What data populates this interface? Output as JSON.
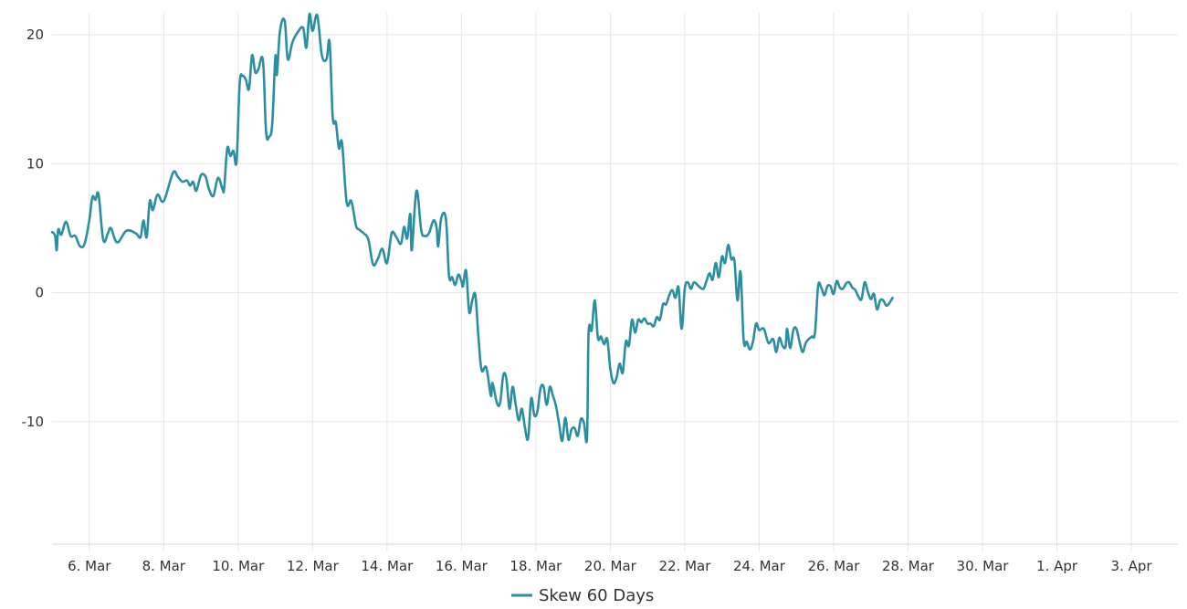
{
  "chart_data": {
    "type": "line",
    "title": "",
    "xlabel": "",
    "ylabel": "",
    "ylim": [
      -19.5,
      21.7
    ],
    "xlim": [
      "2020-03-05T00:00",
      "2020-04-04T06:00"
    ],
    "grid": true,
    "legend_position": "bottom-center",
    "yticks": [
      -10,
      0,
      10,
      20
    ],
    "xticks": [
      {
        "date": "2020-03-06",
        "label": "6. Mar"
      },
      {
        "date": "2020-03-08",
        "label": "8. Mar"
      },
      {
        "date": "2020-03-10",
        "label": "10. Mar"
      },
      {
        "date": "2020-03-12",
        "label": "12. Mar"
      },
      {
        "date": "2020-03-14",
        "label": "14. Mar"
      },
      {
        "date": "2020-03-16",
        "label": "16. Mar"
      },
      {
        "date": "2020-03-18",
        "label": "18. Mar"
      },
      {
        "date": "2020-03-20",
        "label": "20. Mar"
      },
      {
        "date": "2020-03-22",
        "label": "22. Mar"
      },
      {
        "date": "2020-03-24",
        "label": "24. Mar"
      },
      {
        "date": "2020-03-26",
        "label": "26. Mar"
      },
      {
        "date": "2020-03-28",
        "label": "28. Mar"
      },
      {
        "date": "2020-03-30",
        "label": "30. Mar"
      },
      {
        "date": "2020-04-01",
        "label": "1. Apr"
      },
      {
        "date": "2020-04-03",
        "label": "3. Apr"
      }
    ],
    "series": [
      {
        "name": "Skew 60 Days",
        "color": "#2b8fa1",
        "points": [
          [
            "2020-03-05T00:00",
            4.7
          ],
          [
            "2020-03-05T02:00",
            4.4
          ],
          [
            "2020-03-05T03:00",
            3.3
          ],
          [
            "2020-03-05T04:00",
            4.9
          ],
          [
            "2020-03-05T06:00",
            4.5
          ],
          [
            "2020-03-05T09:00",
            5.5
          ],
          [
            "2020-03-05T12:00",
            4.4
          ],
          [
            "2020-03-05T15:00",
            4.4
          ],
          [
            "2020-03-05T18:00",
            3.6
          ],
          [
            "2020-03-05T21:00",
            3.8
          ],
          [
            "2020-03-06T00:00",
            5.6
          ],
          [
            "2020-03-06T02:00",
            7.4
          ],
          [
            "2020-03-06T04:00",
            7.2
          ],
          [
            "2020-03-06T06:00",
            7.6
          ],
          [
            "2020-03-06T09:00",
            4.1
          ],
          [
            "2020-03-06T12:00",
            4.6
          ],
          [
            "2020-03-06T14:00",
            5.0
          ],
          [
            "2020-03-06T18:00",
            3.9
          ],
          [
            "2020-03-07T00:00",
            4.8
          ],
          [
            "2020-03-07T06:00",
            4.6
          ],
          [
            "2020-03-07T09:00",
            4.3
          ],
          [
            "2020-03-07T11:00",
            5.6
          ],
          [
            "2020-03-07T13:00",
            4.3
          ],
          [
            "2020-03-07T15:00",
            7.1
          ],
          [
            "2020-03-07T17:00",
            6.4
          ],
          [
            "2020-03-07T20:00",
            7.6
          ],
          [
            "2020-03-08T00:00",
            7.1
          ],
          [
            "2020-03-08T06:00",
            9.3
          ],
          [
            "2020-03-08T09:00",
            9.0
          ],
          [
            "2020-03-08T12:00",
            8.6
          ],
          [
            "2020-03-08T15:00",
            8.7
          ],
          [
            "2020-03-08T17:00",
            8.3
          ],
          [
            "2020-03-08T19:00",
            8.6
          ],
          [
            "2020-03-08T21:00",
            7.9
          ],
          [
            "2020-03-09T00:00",
            9.1
          ],
          [
            "2020-03-09T03:00",
            9.0
          ],
          [
            "2020-03-09T05:00",
            8.1
          ],
          [
            "2020-03-09T08:00",
            7.5
          ],
          [
            "2020-03-09T11:00",
            8.9
          ],
          [
            "2020-03-09T14:00",
            8.0
          ],
          [
            "2020-03-09T15:00",
            8.1
          ],
          [
            "2020-03-09T17:00",
            11.2
          ],
          [
            "2020-03-09T19:00",
            10.6
          ],
          [
            "2020-03-09T21:00",
            11.0
          ],
          [
            "2020-03-09T23:00",
            10.2
          ],
          [
            "2020-03-10T01:00",
            16.2
          ],
          [
            "2020-03-10T03:00",
            16.8
          ],
          [
            "2020-03-10T05:00",
            16.5
          ],
          [
            "2020-03-10T07:00",
            15.8
          ],
          [
            "2020-03-10T09:00",
            18.4
          ],
          [
            "2020-03-10T11:00",
            17.1
          ],
          [
            "2020-03-10T13:00",
            17.3
          ],
          [
            "2020-03-10T16:00",
            18.0
          ],
          [
            "2020-03-10T18:00",
            12.5
          ],
          [
            "2020-03-10T20:00",
            12.1
          ],
          [
            "2020-03-10T22:00",
            13.1
          ],
          [
            "2020-03-11T00:00",
            18.3
          ],
          [
            "2020-03-11T01:00",
            16.9
          ],
          [
            "2020-03-11T03:00",
            20.3
          ],
          [
            "2020-03-11T06:00",
            21.1
          ],
          [
            "2020-03-11T08:00",
            18.1
          ],
          [
            "2020-03-11T11:00",
            19.4
          ],
          [
            "2020-03-11T15:00",
            20.3
          ],
          [
            "2020-03-11T18:00",
            20.5
          ],
          [
            "2020-03-11T20:00",
            19.0
          ],
          [
            "2020-03-11T22:00",
            21.6
          ],
          [
            "2020-03-12T00:00",
            20.3
          ],
          [
            "2020-03-12T03:00",
            21.5
          ],
          [
            "2020-03-12T06:00",
            18.4
          ],
          [
            "2020-03-12T09:00",
            18.1
          ],
          [
            "2020-03-12T11:00",
            19.4
          ],
          [
            "2020-03-12T13:00",
            13.6
          ],
          [
            "2020-03-12T15:00",
            13.2
          ],
          [
            "2020-03-12T17:00",
            11.2
          ],
          [
            "2020-03-12T19:00",
            11.6
          ],
          [
            "2020-03-12T22:00",
            7.0
          ],
          [
            "2020-03-13T01:00",
            7.1
          ],
          [
            "2020-03-13T04:00",
            5.2
          ],
          [
            "2020-03-13T06:00",
            4.9
          ],
          [
            "2020-03-13T09:00",
            4.6
          ],
          [
            "2020-03-13T12:00",
            4.1
          ],
          [
            "2020-03-13T15:00",
            2.2
          ],
          [
            "2020-03-13T18:00",
            2.6
          ],
          [
            "2020-03-13T21:00",
            3.4
          ],
          [
            "2020-03-14T00:00",
            2.3
          ],
          [
            "2020-03-14T03:00",
            4.6
          ],
          [
            "2020-03-14T06:00",
            4.3
          ],
          [
            "2020-03-14T09:00",
            3.8
          ],
          [
            "2020-03-14T11:00",
            5.1
          ],
          [
            "2020-03-14T13:00",
            4.2
          ],
          [
            "2020-03-14T15:00",
            6.1
          ],
          [
            "2020-03-14T16:00",
            3.3
          ],
          [
            "2020-03-14T19:00",
            7.9
          ],
          [
            "2020-03-14T22:00",
            4.9
          ],
          [
            "2020-03-15T00:00",
            4.4
          ],
          [
            "2020-03-15T03:00",
            4.6
          ],
          [
            "2020-03-15T06:00",
            5.6
          ],
          [
            "2020-03-15T08:00",
            5.0
          ],
          [
            "2020-03-15T09:00",
            3.6
          ],
          [
            "2020-03-15T11:00",
            5.8
          ],
          [
            "2020-03-15T14:00",
            5.7
          ],
          [
            "2020-03-15T16:00",
            1.3
          ],
          [
            "2020-03-15T18:00",
            1.2
          ],
          [
            "2020-03-15T20:00",
            0.6
          ],
          [
            "2020-03-15T22:00",
            1.4
          ],
          [
            "2020-03-16T00:00",
            0.9
          ],
          [
            "2020-03-16T01:00",
            0.5
          ],
          [
            "2020-03-16T03:00",
            1.7
          ],
          [
            "2020-03-16T05:00",
            -1.5
          ],
          [
            "2020-03-16T07:00",
            -0.6
          ],
          [
            "2020-03-16T09:00",
            -0.2
          ],
          [
            "2020-03-16T11:00",
            -3.5
          ],
          [
            "2020-03-16T13:00",
            -6.0
          ],
          [
            "2020-03-16T16:00",
            -5.8
          ],
          [
            "2020-03-16T19:00",
            -8.0
          ],
          [
            "2020-03-16T20:00",
            -7.0
          ],
          [
            "2020-03-16T23:00",
            -8.6
          ],
          [
            "2020-03-17T01:00",
            -8.5
          ],
          [
            "2020-03-17T03:00",
            -6.4
          ],
          [
            "2020-03-17T05:00",
            -6.7
          ],
          [
            "2020-03-17T07:00",
            -9.0
          ],
          [
            "2020-03-17T09:00",
            -7.3
          ],
          [
            "2020-03-17T11:00",
            -8.7
          ],
          [
            "2020-03-17T13:00",
            -9.9
          ],
          [
            "2020-03-17T15:00",
            -9.0
          ],
          [
            "2020-03-17T17:00",
            -10.5
          ],
          [
            "2020-03-17T19:00",
            -11.3
          ],
          [
            "2020-03-17T21:00",
            -8.2
          ],
          [
            "2020-03-17T23:00",
            -9.5
          ],
          [
            "2020-03-18T01:00",
            -9.2
          ],
          [
            "2020-03-18T03:00",
            -7.4
          ],
          [
            "2020-03-18T05:00",
            -7.3
          ],
          [
            "2020-03-18T07:00",
            -8.7
          ],
          [
            "2020-03-18T09:00",
            -7.3
          ],
          [
            "2020-03-18T11:00",
            -8.0
          ],
          [
            "2020-03-18T13:00",
            -8.8
          ],
          [
            "2020-03-18T15:00",
            -10.2
          ],
          [
            "2020-03-18T17:00",
            -11.5
          ],
          [
            "2020-03-18T19:00",
            -9.7
          ],
          [
            "2020-03-18T21:00",
            -11.4
          ],
          [
            "2020-03-18T23:00",
            -10.6
          ],
          [
            "2020-03-19T01:00",
            -10.5
          ],
          [
            "2020-03-19T03:00",
            -11.1
          ],
          [
            "2020-03-19T05:00",
            -9.8
          ],
          [
            "2020-03-19T07:00",
            -10.1
          ],
          [
            "2020-03-19T09:00",
            -11.2
          ],
          [
            "2020-03-19T10:00",
            -3.1
          ],
          [
            "2020-03-19T12:00",
            -2.9
          ],
          [
            "2020-03-19T14:00",
            -0.6
          ],
          [
            "2020-03-19T16:00",
            -3.5
          ],
          [
            "2020-03-19T18:00",
            -3.4
          ],
          [
            "2020-03-19T20:00",
            -4.0
          ],
          [
            "2020-03-19T22:00",
            -3.6
          ],
          [
            "2020-03-20T00:00",
            -5.9
          ],
          [
            "2020-03-20T02:00",
            -7.0
          ],
          [
            "2020-03-20T04:00",
            -6.6
          ],
          [
            "2020-03-20T06:00",
            -5.5
          ],
          [
            "2020-03-20T08:00",
            -6.2
          ],
          [
            "2020-03-20T10:00",
            -3.8
          ],
          [
            "2020-03-20T12:00",
            -4.1
          ],
          [
            "2020-03-20T14:00",
            -2.1
          ],
          [
            "2020-03-20T16:00",
            -3.1
          ],
          [
            "2020-03-20T18:00",
            -2.1
          ],
          [
            "2020-03-20T20:00",
            -2.3
          ],
          [
            "2020-03-20T22:00",
            -2.0
          ],
          [
            "2020-03-21T00:00",
            -2.4
          ],
          [
            "2020-03-21T02:00",
            -2.4
          ],
          [
            "2020-03-21T04:00",
            -2.6
          ],
          [
            "2020-03-21T06:00",
            -1.9
          ],
          [
            "2020-03-21T08:00",
            -2.1
          ],
          [
            "2020-03-21T10:00",
            -0.9
          ],
          [
            "2020-03-21T12:00",
            -0.9
          ],
          [
            "2020-03-21T14:00",
            -0.2
          ],
          [
            "2020-03-21T16:00",
            0.2
          ],
          [
            "2020-03-21T18:00",
            -0.4
          ],
          [
            "2020-03-21T20:00",
            0.4
          ],
          [
            "2020-03-21T22:00",
            -2.8
          ],
          [
            "2020-03-22T00:00",
            0.3
          ],
          [
            "2020-03-22T02:00",
            0.8
          ],
          [
            "2020-03-22T04:00",
            0.3
          ],
          [
            "2020-03-22T06:00",
            0.8
          ],
          [
            "2020-03-22T09:00",
            0.5
          ],
          [
            "2020-03-22T12:00",
            0.3
          ],
          [
            "2020-03-22T14:00",
            0.9
          ],
          [
            "2020-03-22T16:00",
            1.5
          ],
          [
            "2020-03-22T18:00",
            1.0
          ],
          [
            "2020-03-22T20:00",
            2.3
          ],
          [
            "2020-03-22T22:00",
            1.2
          ],
          [
            "2020-03-23T00:00",
            2.8
          ],
          [
            "2020-03-23T02:00",
            2.3
          ],
          [
            "2020-03-23T04:00",
            3.7
          ],
          [
            "2020-03-23T06:00",
            2.6
          ],
          [
            "2020-03-23T08:00",
            2.5
          ],
          [
            "2020-03-23T10:00",
            -0.6
          ],
          [
            "2020-03-23T12:00",
            1.6
          ],
          [
            "2020-03-23T14:00",
            -3.7
          ],
          [
            "2020-03-23T16:00",
            -3.8
          ],
          [
            "2020-03-23T18:00",
            -4.4
          ],
          [
            "2020-03-23T20:00",
            -3.8
          ],
          [
            "2020-03-23T22:00",
            -2.4
          ],
          [
            "2020-03-24T00:00",
            -2.9
          ],
          [
            "2020-03-24T03:00",
            -2.8
          ],
          [
            "2020-03-24T06:00",
            -3.9
          ],
          [
            "2020-03-24T09:00",
            -3.6
          ],
          [
            "2020-03-24T11:00",
            -4.6
          ],
          [
            "2020-03-24T13:00",
            -3.5
          ],
          [
            "2020-03-24T15:00",
            -4.1
          ],
          [
            "2020-03-24T17:00",
            -4.2
          ],
          [
            "2020-03-24T18:00",
            -2.8
          ],
          [
            "2020-03-24T20:00",
            -4.3
          ],
          [
            "2020-03-24T22:00",
            -2.9
          ],
          [
            "2020-03-25T00:00",
            -2.8
          ],
          [
            "2020-03-25T02:00",
            -3.8
          ],
          [
            "2020-03-25T04:00",
            -4.6
          ],
          [
            "2020-03-25T06:00",
            -3.9
          ],
          [
            "2020-03-25T08:00",
            -3.6
          ],
          [
            "2020-03-25T10:00",
            -3.4
          ],
          [
            "2020-03-25T12:00",
            -3.1
          ],
          [
            "2020-03-25T14:00",
            0.5
          ],
          [
            "2020-03-25T16:00",
            0.4
          ],
          [
            "2020-03-25T18:00",
            -0.2
          ],
          [
            "2020-03-25T20:00",
            0.5
          ],
          [
            "2020-03-25T22:00",
            0.5
          ],
          [
            "2020-03-26T00:00",
            -0.1
          ],
          [
            "2020-03-26T02:00",
            0.9
          ],
          [
            "2020-03-26T04:00",
            0.4
          ],
          [
            "2020-03-26T06:00",
            0.3
          ],
          [
            "2020-03-26T08:00",
            0.7
          ],
          [
            "2020-03-26T10:00",
            0.8
          ],
          [
            "2020-03-26T12:00",
            0.4
          ],
          [
            "2020-03-26T14:00",
            0.2
          ],
          [
            "2020-03-26T16:00",
            -0.3
          ],
          [
            "2020-03-26T18:00",
            -0.5
          ],
          [
            "2020-03-26T20:00",
            0.8
          ],
          [
            "2020-03-26T22:00",
            0.1
          ],
          [
            "2020-03-27T00:00",
            -0.5
          ],
          [
            "2020-03-27T02:00",
            -0.1
          ],
          [
            "2020-03-27T04:00",
            -1.3
          ],
          [
            "2020-03-27T06:00",
            -0.6
          ],
          [
            "2020-03-27T08:00",
            -0.6
          ],
          [
            "2020-03-27T10:00",
            -1.0
          ],
          [
            "2020-03-27T12:00",
            -0.8
          ],
          [
            "2020-03-27T14:00",
            -0.4
          ]
        ]
      }
    ]
  }
}
